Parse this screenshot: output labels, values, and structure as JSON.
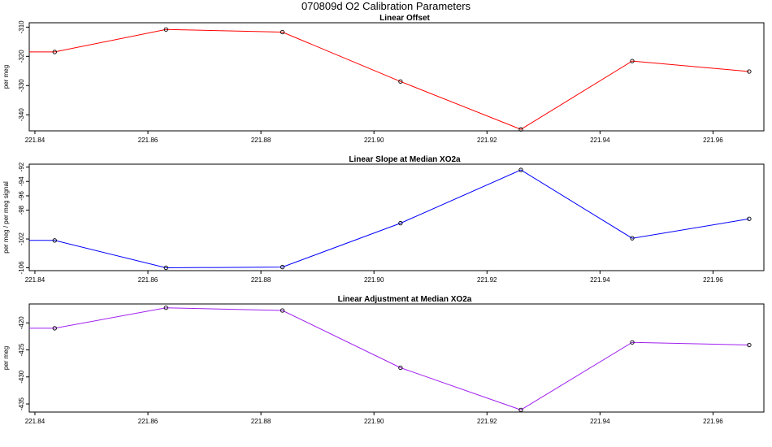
{
  "page": {
    "title": "070809d   O2 Calibration Parameters"
  },
  "chart_data": [
    {
      "type": "line",
      "title": "Linear Offset",
      "xlabel": "",
      "ylabel": "per meg",
      "color": "#ff0000",
      "xlim": [
        221.839,
        221.969
      ],
      "ylim": [
        -345.5,
        -308.5
      ],
      "xticks": [
        221.84,
        221.86,
        221.88,
        221.9,
        221.92,
        221.94,
        221.96
      ],
      "xtick_labels": [
        "221.84",
        "221.86",
        "221.88",
        "221.90",
        "221.92",
        "221.94",
        "221.96"
      ],
      "yticks": [
        -310,
        -320,
        -330,
        -340
      ],
      "ytick_labels": [
        "-310",
        "-320",
        "-330",
        "-340"
      ],
      "x": [
        221.8435,
        221.8632,
        221.8838,
        221.9047,
        221.926,
        221.9457,
        221.9664
      ],
      "y": [
        -318.5,
        -310.8,
        -311.7,
        -328.6,
        -345.0,
        -321.6,
        -325.2
      ]
    },
    {
      "type": "line",
      "title": "Linear Slope at Median XO2a",
      "xlabel": "",
      "ylabel": "per meg / per meg signal",
      "color": "#0000ff",
      "xlim": [
        221.839,
        221.969
      ],
      "ylim": [
        -106.4,
        -91.6
      ],
      "xticks": [
        221.84,
        221.86,
        221.88,
        221.9,
        221.92,
        221.94,
        221.96
      ],
      "xtick_labels": [
        "221.84",
        "221.86",
        "221.88",
        "221.90",
        "221.92",
        "221.94",
        "221.96"
      ],
      "yticks": [
        -92,
        -94,
        -96,
        -98,
        -102,
        -106
      ],
      "ytick_labels": [
        "-92",
        "-94",
        "-96",
        "-98",
        "-102",
        "-106"
      ],
      "x": [
        221.8435,
        221.8632,
        221.8838,
        221.9047,
        221.926,
        221.9457,
        221.9664
      ],
      "y": [
        -102.2,
        -106.0,
        -105.9,
        -99.8,
        -92.4,
        -101.9,
        -99.2
      ]
    },
    {
      "type": "line",
      "title": "Linear Adjustment at Median XO2a",
      "xlabel": "",
      "ylabel": "per meg",
      "color": "#a020f0",
      "xlim": [
        221.839,
        221.969
      ],
      "ylim": [
        -436.5,
        -416.5
      ],
      "xticks": [
        221.84,
        221.86,
        221.88,
        221.9,
        221.92,
        221.94,
        221.96
      ],
      "xtick_labels": [
        "221.84",
        "221.86",
        "221.88",
        "221.90",
        "221.92",
        "221.94",
        "221.96"
      ],
      "yticks": [
        -420,
        -425,
        -430,
        -435
      ],
      "ytick_labels": [
        "-420",
        "-425",
        "-430",
        "-435"
      ],
      "x": [
        221.8435,
        221.8632,
        221.8838,
        221.9047,
        221.926,
        221.9457,
        221.9664
      ],
      "y": [
        -421.0,
        -417.2,
        -417.7,
        -428.3,
        -436.1,
        -423.6,
        -424.1
      ]
    }
  ]
}
